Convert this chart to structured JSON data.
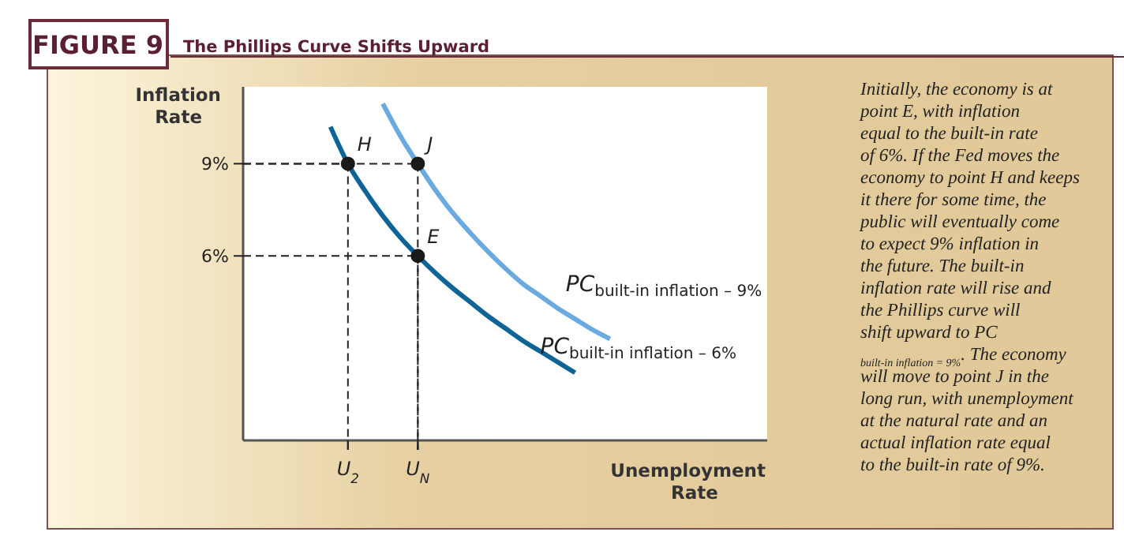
{
  "chart_data": {
    "type": "line",
    "title": "The Phillips Curve Shifts Upward",
    "ylabel": "Inflation Rate",
    "xlabel": "Unemployment Rate",
    "annotations": [
      "FIGURE 9",
      "Initially, the economy is at point E, with inflation equal to the built-in rate of 6%. If the Fed moves the economy to point H and keeps it there for some time, the public will eventually come to expect 9% inflation in the future. The built-in inflation rate will rise and the Phillips curve will shift upward to PC$_{built-in inflation = 9%}$. The economy will move to point J in the long run, with unemployment at the natural rate and an actual inflation rate equal to the built-in rate of 9%.",
      {
        "text": "H",
        "x": "U$_{2}$",
        "y": 9
      },
      {
        "text": "J",
        "x": "U$_{N}$",
        "y": 9
      },
      {
        "text": "E",
        "x": "U$_{N}$",
        "y": 6
      }
    ],
    "categories": [
      null,
      null,
      null,
      null,
      null,
      null,
      "U$_{2}$",
      null,
      null,
      null,
      "U$_{N}$",
      null,
      null,
      null,
      null,
      null,
      null,
      null,
      null,
      null,
      null,
      null,
      null,
      null,
      null,
      null,
      null,
      null,
      null,
      null,
      null
    ],
    "ylim": [
      0,
      11.5
    ],
    "grid": true,
    "yticks": [
      {
        "value": 6,
        "label": "6%"
      },
      {
        "value": 9,
        "label": "9%"
      }
    ],
    "series": [
      {
        "name": "PC$_{built-in inflation – 9%}$",
        "color": "#6aaade",
        "values": [
          null,
          null,
          null,
          null,
          null,
          null,
          null,
          null,
          10.95,
          9.9,
          9,
          8.15,
          7.4,
          6.75,
          6.15,
          5.6,
          5.1,
          4.7,
          4.3,
          3.95,
          3.6,
          3.3,
          null,
          null,
          null,
          null,
          null,
          null,
          null,
          null,
          null
        ]
      },
      {
        "name": "PC$_{built-in inflation – 6%}$",
        "color": "#0e6496",
        "values": [
          null,
          null,
          null,
          null,
          null,
          10.2,
          9,
          8.1,
          7.3,
          6.6,
          6,
          5.45,
          4.95,
          4.5,
          4.05,
          3.65,
          3.25,
          2.9,
          2.55,
          2.2,
          null,
          null,
          null,
          null,
          null,
          null,
          null,
          null,
          null,
          null,
          null
        ]
      },
      {
        "type": "scatter",
        "marker": "circle",
        "color": "#1a1a1a",
        "x": [
          "U$_{2}$",
          "U$_{N}$",
          "U$_{N}$"
        ],
        "values": [
          9,
          9,
          6
        ]
      }
    ]
  }
}
